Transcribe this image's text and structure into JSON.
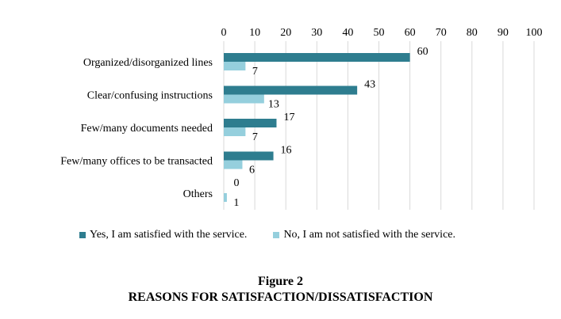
{
  "chart_data": {
    "type": "bar",
    "orientation": "horizontal",
    "categories": [
      "Organized/disorganized lines",
      "Clear/confusing instructions",
      "Few/many documents needed",
      "Few/many offices to be transacted",
      "Others"
    ],
    "series": [
      {
        "name": "Yes, I am satisfied with the service.",
        "values": [
          60,
          43,
          17,
          16,
          0
        ],
        "color": "#2e7d8f"
      },
      {
        "name": "No, I am not satisfied with the service.",
        "values": [
          7,
          13,
          7,
          6,
          1
        ],
        "color": "#95cfdd"
      }
    ],
    "xlim": [
      0,
      100
    ],
    "xticks": [
      0,
      10,
      20,
      30,
      40,
      50,
      60,
      70,
      80,
      90,
      100
    ],
    "grid": true,
    "legend_position": "bottom"
  },
  "caption": {
    "figure_number": "Figure 2",
    "title": "REASONS FOR SATISFACTION/DISSATISFACTION"
  }
}
